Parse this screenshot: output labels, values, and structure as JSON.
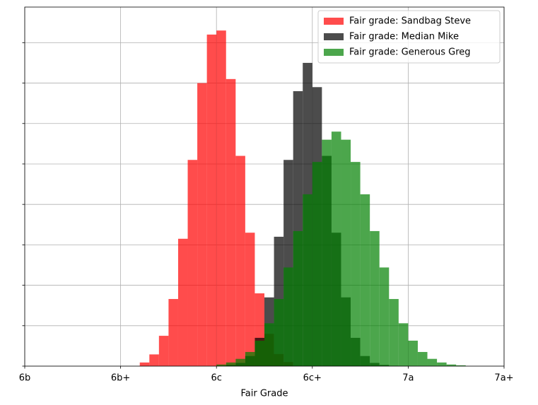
{
  "chart_data": {
    "type": "histogram",
    "xlabel": "Fair Grade",
    "xlim": [
      0,
      5
    ],
    "xticks": [
      {
        "value": 0,
        "label": "6b"
      },
      {
        "value": 1,
        "label": "6b+"
      },
      {
        "value": 2,
        "label": "6c"
      },
      {
        "value": 3,
        "label": "6c+"
      },
      {
        "value": 4,
        "label": "7a"
      },
      {
        "value": 5,
        "label": "7a+"
      }
    ],
    "ylim": [
      0,
      8.88
    ],
    "yticks": [
      0,
      1,
      2,
      3,
      4,
      5,
      6,
      7,
      8
    ],
    "grid": true,
    "legend": "upper right",
    "opacity": 0.7,
    "series": [
      {
        "name": "Fair grade: Sandbag Steve",
        "color": "#ff0000",
        "bins": [
          1.2,
          1.3,
          1.4,
          1.5,
          1.6,
          1.7,
          1.8,
          1.9,
          2.0,
          2.1,
          2.2,
          2.3,
          2.4,
          2.5,
          2.6,
          2.7,
          2.8
        ],
        "values": [
          0.09,
          0.29,
          0.75,
          1.66,
          3.15,
          5.1,
          7.0,
          8.2,
          8.3,
          7.1,
          5.2,
          3.3,
          1.8,
          0.8,
          0.3,
          0.1
        ]
      },
      {
        "name": "Fair grade: Median Mike",
        "color": "#000000",
        "bins": [
          2.0,
          2.1,
          2.2,
          2.3,
          2.4,
          2.5,
          2.6,
          2.7,
          2.8,
          2.9,
          3.0,
          3.1,
          3.2,
          3.3,
          3.4,
          3.5,
          3.6,
          3.7,
          3.8,
          3.9,
          4.0
        ],
        "values": [
          0.01,
          0.03,
          0.08,
          0.25,
          0.7,
          1.7,
          3.2,
          5.1,
          6.8,
          7.5,
          6.9,
          5.2,
          3.3,
          1.7,
          0.7,
          0.25,
          0.08,
          0.03,
          0.01,
          0.005
        ]
      },
      {
        "name": "Fair grade: Generous Greg",
        "color": "#008000",
        "bins": [
          2.0,
          2.1,
          2.2,
          2.3,
          2.4,
          2.5,
          2.6,
          2.7,
          2.8,
          2.9,
          3.0,
          3.1,
          3.2,
          3.3,
          3.4,
          3.5,
          3.6,
          3.7,
          3.8,
          3.9,
          4.0,
          4.1,
          4.2,
          4.3,
          4.4,
          4.5,
          4.6
        ],
        "values": [
          0.04,
          0.09,
          0.18,
          0.35,
          0.63,
          1.06,
          1.66,
          2.44,
          3.34,
          4.25,
          5.05,
          5.6,
          5.8,
          5.6,
          5.05,
          4.25,
          3.34,
          2.44,
          1.66,
          1.06,
          0.63,
          0.35,
          0.18,
          0.09,
          0.04,
          0.02
        ]
      }
    ]
  }
}
